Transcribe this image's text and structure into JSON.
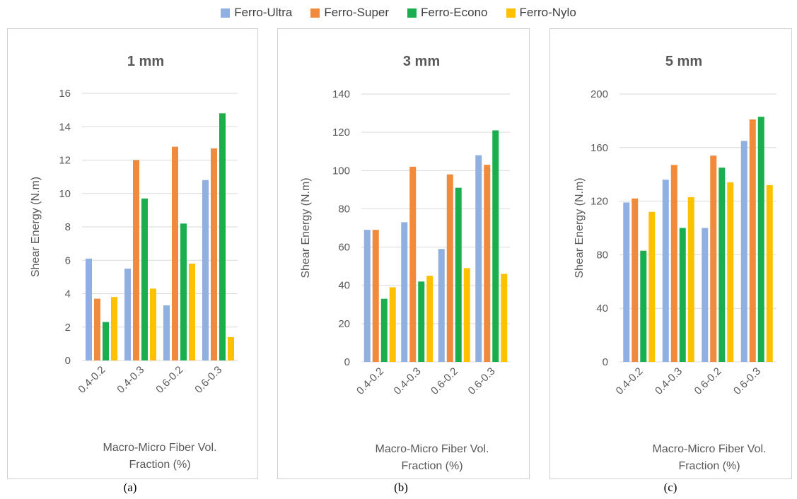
{
  "legend": [
    {
      "name": "Ferro-Ultra",
      "color": "#8fb0e0"
    },
    {
      "name": "Ferro-Super",
      "color": "#f08a3c"
    },
    {
      "name": "Ferro-Econo",
      "color": "#1aae4e"
    },
    {
      "name": "Ferro-Nylo",
      "color": "#ffc000"
    }
  ],
  "panel_labels": [
    "(a)",
    "(b)",
    "(c)"
  ],
  "chart_data": [
    {
      "type": "bar",
      "title": "1 mm",
      "xlabel": "Macro-Micro Fiber Vol. Fraction (%)",
      "ylabel": "Shear Energy (N.m)",
      "categories": [
        "0.4-0.2",
        "0.4-0.3",
        "0.6-0.2",
        "0.6-0.3"
      ],
      "ylim": [
        0,
        16
      ],
      "yticks": [
        0,
        2,
        4,
        6,
        8,
        10,
        12,
        14,
        16
      ],
      "grid": true,
      "series": [
        {
          "name": "Ferro-Ultra",
          "values": [
            6.1,
            5.5,
            3.3,
            10.8
          ]
        },
        {
          "name": "Ferro-Super",
          "values": [
            3.7,
            12.0,
            12.8,
            12.7
          ]
        },
        {
          "name": "Ferro-Econo",
          "values": [
            2.3,
            9.7,
            8.2,
            14.8
          ]
        },
        {
          "name": "Ferro-Nylo",
          "values": [
            3.8,
            4.3,
            5.8,
            1.4
          ]
        }
      ]
    },
    {
      "type": "bar",
      "title": "3 mm",
      "xlabel": "Macro-Micro Fiber Vol. Fraction (%)",
      "ylabel": "Shear Energy (N.m)",
      "categories": [
        "0.4-0.2",
        "0.4-0.3",
        "0.6-0.2",
        "0.6-0.3"
      ],
      "ylim": [
        0,
        140
      ],
      "yticks": [
        0,
        20,
        40,
        60,
        80,
        100,
        120,
        140
      ],
      "grid": true,
      "series": [
        {
          "name": "Ferro-Ultra",
          "values": [
            69,
            73,
            59,
            108
          ]
        },
        {
          "name": "Ferro-Super",
          "values": [
            69,
            102,
            98,
            103
          ]
        },
        {
          "name": "Ferro-Econo",
          "values": [
            33,
            42,
            91,
            121
          ]
        },
        {
          "name": "Ferro-Nylo",
          "values": [
            39,
            45,
            49,
            46
          ]
        }
      ]
    },
    {
      "type": "bar",
      "title": "5 mm",
      "xlabel": "Macro-Micro Fiber Vol. Fraction (%)",
      "ylabel": "Shear Energy (N.m)",
      "categories": [
        "0.4-0.2",
        "0.4-0.3",
        "0.6-0.2",
        "0.6-0.3"
      ],
      "ylim": [
        0,
        200
      ],
      "yticks": [
        0,
        40,
        80,
        120,
        160,
        200
      ],
      "grid": true,
      "series": [
        {
          "name": "Ferro-Ultra",
          "values": [
            119,
            136,
            100,
            165
          ]
        },
        {
          "name": "Ferro-Super",
          "values": [
            122,
            147,
            154,
            181
          ]
        },
        {
          "name": "Ferro-Econo",
          "values": [
            83,
            100,
            145,
            183
          ]
        },
        {
          "name": "Ferro-Nylo",
          "values": [
            112,
            123,
            134,
            132
          ]
        }
      ]
    }
  ]
}
